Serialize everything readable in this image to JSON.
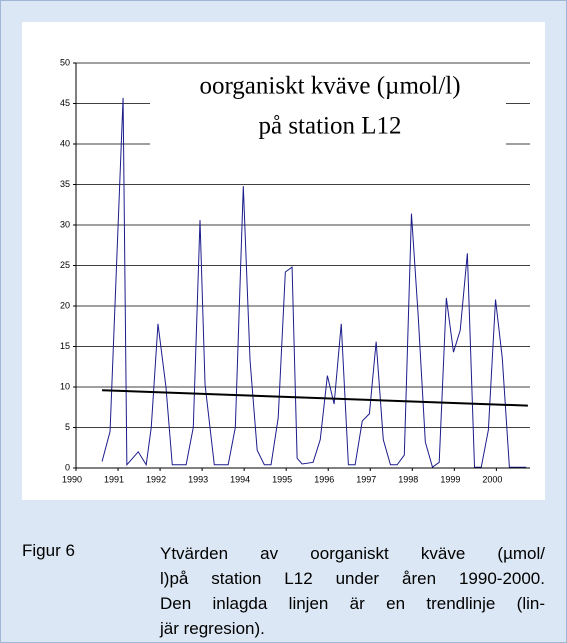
{
  "chart_data": {
    "type": "line",
    "title_lines": [
      "oorganiskt kväve (µmol/l)",
      "på station L12"
    ],
    "x": [
      1990.62,
      1990.81,
      1991.12,
      1991.21,
      1991.48,
      1991.67,
      1991.79,
      1991.95,
      1992.14,
      1992.29,
      1992.62,
      1992.79,
      1992.95,
      1993.07,
      1993.29,
      1993.62,
      1993.79,
      1993.98,
      1994.14,
      1994.31,
      1994.48,
      1994.64,
      1994.81,
      1994.98,
      1995.14,
      1995.26,
      1995.38,
      1995.64,
      1995.81,
      1995.98,
      1996.14,
      1996.31,
      1996.48,
      1996.64,
      1996.81,
      1996.98,
      1997.14,
      1997.31,
      1997.48,
      1997.64,
      1997.81,
      1997.98,
      1998.14,
      1998.31,
      1998.48,
      1998.64,
      1998.81,
      1998.98,
      1999.14,
      1999.31,
      1999.48,
      1999.64,
      1999.81,
      1999.98,
      2000.14,
      2000.31,
      2000.48,
      2000.71
    ],
    "series": [
      {
        "color": "#1c1c8c",
        "values": [
          0.8,
          4.5,
          45.7,
          0.4,
          2,
          0.4,
          5,
          17.8,
          10,
          0.4,
          0.4,
          5,
          30.6,
          10.3,
          0.4,
          0.4,
          5,
          34.8,
          13.3,
          2.2,
          0.4,
          0.4,
          6.2,
          24.2,
          24.8,
          1.2,
          0.5,
          0.7,
          3.5,
          11.4,
          7.9,
          17.8,
          0.4,
          0.4,
          5.8,
          6.7,
          15.6,
          3.5,
          0.4,
          0.4,
          1.6,
          31.4,
          18.8,
          3.2,
          0.1,
          0.7,
          21,
          14.3,
          17,
          26.5,
          0.1,
          0.1,
          4.7,
          20.8,
          13.6,
          0.1,
          0.1,
          0.1
        ]
      }
    ],
    "trend": {
      "color": "#000000",
      "x": [
        1990.62,
        2000.75
      ],
      "values": [
        9.6,
        7.7
      ]
    },
    "xlim": [
      1990,
      2000.8
    ],
    "xticks": [
      1990,
      1991,
      1992,
      1993,
      1994,
      1995,
      1996,
      1997,
      1998,
      1999,
      2000
    ],
    "ylim": [
      0,
      50
    ],
    "yticks": [
      0,
      5,
      10,
      15,
      20,
      25,
      30,
      35,
      40,
      45,
      50
    ],
    "grid": true
  },
  "caption": {
    "label": "Figur 6",
    "lines": [
      "Ytvärden av oorganiskt kväve (µmol/",
      "l)på station L12 under åren 1990-2000.",
      "Den inlagda linjen är en trendlinje (lin-",
      "jär regresion)."
    ]
  }
}
